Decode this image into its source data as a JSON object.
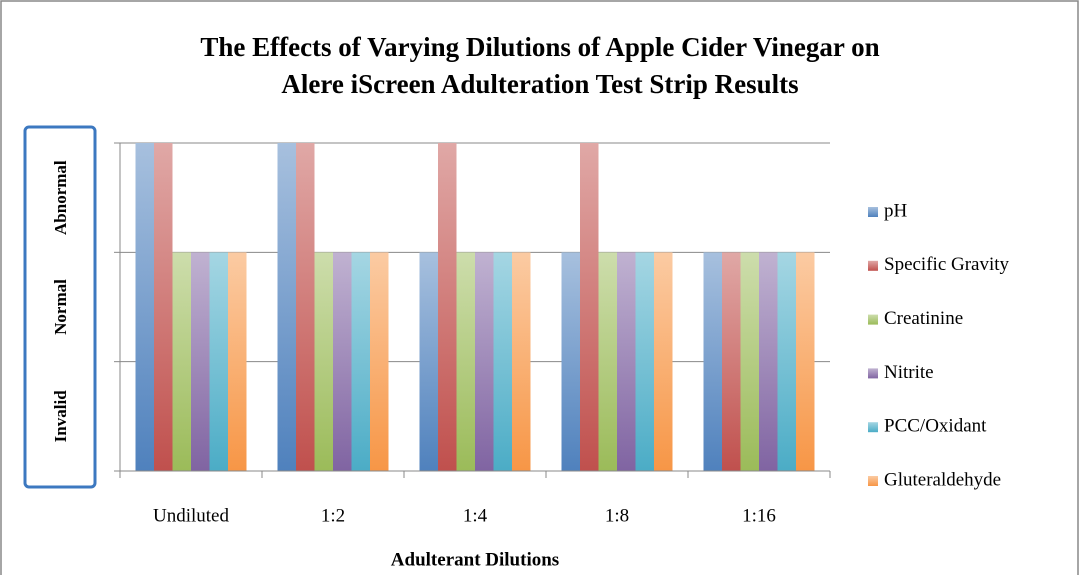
{
  "chart_data": {
    "type": "bar",
    "title": [
      "The Effects of Varying Dilutions of Apple Cider Vinegar on",
      "Alere iScreen Adulteration Test Strip Results"
    ],
    "x_label": "Adulterant Dilutions",
    "categories": [
      "Undiluted",
      "1:2",
      "1:4",
      "1:8",
      "1:16"
    ],
    "series": [
      {
        "name": "pH",
        "color": "#4f81bd",
        "values": [
          3,
          3,
          2,
          2,
          2
        ]
      },
      {
        "name": "Specific Gravity",
        "color": "#c0504d",
        "values": [
          3,
          3,
          3,
          3,
          2
        ]
      },
      {
        "name": "Creatinine",
        "color": "#9bbb59",
        "values": [
          2,
          2,
          2,
          2,
          2
        ]
      },
      {
        "name": "Nitrite",
        "color": "#8064a2",
        "values": [
          2,
          2,
          2,
          2,
          2
        ]
      },
      {
        "name": "PCC/Oxidant",
        "color": "#4bacc6",
        "values": [
          2,
          2,
          2,
          2,
          2
        ]
      },
      {
        "name": "Gluteraldehyde",
        "color": "#f79646",
        "values": [
          2,
          2,
          2,
          2,
          2
        ]
      }
    ],
    "ylim": [
      0,
      3
    ],
    "yticks": [
      0,
      1,
      2,
      3
    ],
    "y_category_labels": [
      {
        "value": 0.5,
        "label": "Invalid"
      },
      {
        "value": 1.5,
        "label": "Normal"
      },
      {
        "value": 2.5,
        "label": "Abnormal"
      }
    ],
    "grid": true,
    "legend": "right"
  }
}
